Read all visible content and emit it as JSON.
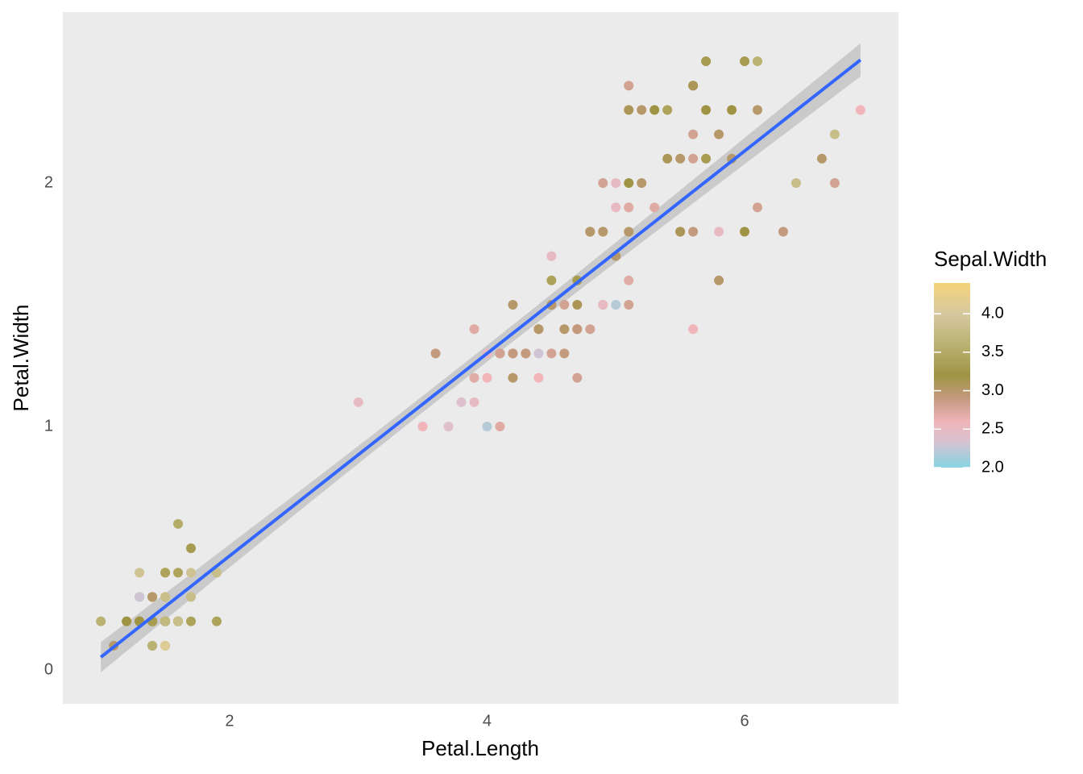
{
  "chart_data": {
    "type": "scatter",
    "x_label": "Petal.Length",
    "y_label": "Petal.Width",
    "xlim": [
      0.705,
      7.195
    ],
    "ylim": [
      -0.139,
      2.702
    ],
    "xticks": [
      2,
      4,
      6
    ],
    "yticks": [
      0,
      1,
      2
    ],
    "x_minor_grid": [
      1,
      3,
      5,
      7
    ],
    "y_minor_grid": [
      0.5,
      1.5,
      2.5
    ],
    "grid": true,
    "smooth": {
      "method": "lm",
      "se": true,
      "color": "#3366ff",
      "band_color": "#999999"
    },
    "color_scale": {
      "name": "Sepal.Width",
      "limits": [
        2.0,
        4.4
      ],
      "ticks": [
        {
          "value": 2.0,
          "label": "2.0"
        },
        {
          "value": 2.5,
          "label": "2.5"
        },
        {
          "value": 3.0,
          "label": "3.0"
        },
        {
          "value": 3.5,
          "label": "3.5"
        },
        {
          "value": 4.0,
          "label": "4.0"
        }
      ],
      "stops": [
        {
          "value": 2.0,
          "color": "#88d4e2"
        },
        {
          "value": 2.35,
          "color": "#d9c2d0"
        },
        {
          "value": 2.6,
          "color": "#f0b4b9"
        },
        {
          "value": 2.9,
          "color": "#c39a7e"
        },
        {
          "value": 3.2,
          "color": "#9f9444"
        },
        {
          "value": 3.6,
          "color": "#bab272"
        },
        {
          "value": 4.0,
          "color": "#d6c9a0"
        },
        {
          "value": 4.4,
          "color": "#f5d37a"
        }
      ]
    },
    "x": [
      1.4,
      1.4,
      1.3,
      1.5,
      1.4,
      1.7,
      1.4,
      1.5,
      1.4,
      1.5,
      1.5,
      1.6,
      1.4,
      1.1,
      1.2,
      1.5,
      1.3,
      1.4,
      1.7,
      1.5,
      1.7,
      1.5,
      1.0,
      1.7,
      1.9,
      1.6,
      1.6,
      1.5,
      1.4,
      1.6,
      1.6,
      1.5,
      1.5,
      1.4,
      1.5,
      1.2,
      1.3,
      1.4,
      1.3,
      1.5,
      1.3,
      1.3,
      1.3,
      1.6,
      1.9,
      1.4,
      1.6,
      1.4,
      1.5,
      1.4,
      4.7,
      4.5,
      4.9,
      4.0,
      4.6,
      4.5,
      4.7,
      3.3,
      4.6,
      3.9,
      3.5,
      4.2,
      4.0,
      4.7,
      3.6,
      4.4,
      4.5,
      4.1,
      4.5,
      3.9,
      4.8,
      4.0,
      4.9,
      4.7,
      4.3,
      4.4,
      4.8,
      5.0,
      4.5,
      3.5,
      3.8,
      3.7,
      3.9,
      5.1,
      4.5,
      4.5,
      4.7,
      4.4,
      4.1,
      4.0,
      4.4,
      4.6,
      4.0,
      3.3,
      4.2,
      4.2,
      4.2,
      4.3,
      3.0,
      4.1,
      6.0,
      5.1,
      5.9,
      5.6,
      5.8,
      6.6,
      4.5,
      6.3,
      5.8,
      6.1,
      5.1,
      5.3,
      5.5,
      5.0,
      5.1,
      5.3,
      5.5,
      6.7,
      6.9,
      5.0,
      5.7,
      4.9,
      6.7,
      4.9,
      5.7,
      6.0,
      4.8,
      4.9,
      5.6,
      5.8,
      6.1,
      6.4,
      5.6,
      5.1,
      5.6,
      6.1,
      5.6,
      5.5,
      4.8,
      5.4,
      5.6,
      5.1,
      5.1,
      5.9,
      5.7,
      5.2,
      5.0,
      5.2,
      5.4,
      5.1
    ],
    "values": [
      0.2,
      0.2,
      0.2,
      0.2,
      0.2,
      0.4,
      0.3,
      0.2,
      0.2,
      0.1,
      0.2,
      0.2,
      0.1,
      0.1,
      0.2,
      0.4,
      0.4,
      0.3,
      0.3,
      0.3,
      0.2,
      0.4,
      0.2,
      0.5,
      0.2,
      0.2,
      0.4,
      0.2,
      0.2,
      0.2,
      0.2,
      0.4,
      0.1,
      0.2,
      0.2,
      0.2,
      0.2,
      0.1,
      0.2,
      0.2,
      0.3,
      0.3,
      0.2,
      0.6,
      0.4,
      0.3,
      0.2,
      0.2,
      0.2,
      0.2,
      1.4,
      1.5,
      1.5,
      1.3,
      1.5,
      1.3,
      1.6,
      1.0,
      1.3,
      1.4,
      1.0,
      1.5,
      1.0,
      1.4,
      1.3,
      1.4,
      1.5,
      1.0,
      1.5,
      1.1,
      1.8,
      1.3,
      1.5,
      1.2,
      1.3,
      1.4,
      1.4,
      1.7,
      1.5,
      1.0,
      1.1,
      1.0,
      1.2,
      1.6,
      1.5,
      1.6,
      1.5,
      1.3,
      1.3,
      1.3,
      1.2,
      1.4,
      1.2,
      1.0,
      1.3,
      1.2,
      1.3,
      1.3,
      1.1,
      1.3,
      2.5,
      1.9,
      2.1,
      1.8,
      2.2,
      2.1,
      1.7,
      1.8,
      1.8,
      2.5,
      2.0,
      1.9,
      2.1,
      2.0,
      2.4,
      2.3,
      1.8,
      2.2,
      2.3,
      1.5,
      2.3,
      2.0,
      2.0,
      1.8,
      2.1,
      1.8,
      1.8,
      1.8,
      2.1,
      1.6,
      1.9,
      2.0,
      2.2,
      1.5,
      1.4,
      2.3,
      2.4,
      1.8,
      1.8,
      2.1,
      2.4,
      2.3,
      1.9,
      2.3,
      2.5,
      2.3,
      1.9,
      2.0,
      2.3,
      1.8
    ],
    "color_values": [
      3.5,
      3.0,
      3.2,
      3.1,
      3.6,
      3.9,
      3.4,
      3.4,
      2.9,
      3.1,
      3.7,
      3.4,
      3.0,
      3.0,
      4.0,
      4.4,
      3.9,
      3.5,
      3.8,
      3.8,
      3.4,
      3.7,
      3.6,
      3.3,
      3.4,
      3.0,
      3.4,
      3.5,
      3.4,
      3.2,
      3.1,
      3.4,
      4.1,
      4.2,
      3.1,
      3.2,
      3.5,
      3.6,
      3.0,
      3.4,
      3.5,
      2.3,
      3.2,
      3.5,
      3.8,
      3.0,
      3.8,
      3.2,
      3.7,
      3.3,
      3.2,
      3.2,
      3.1,
      2.3,
      2.8,
      2.8,
      3.3,
      2.4,
      2.9,
      2.7,
      2.0,
      3.0,
      2.2,
      2.9,
      2.9,
      3.1,
      3.0,
      2.7,
      2.2,
      2.5,
      3.2,
      2.8,
      2.5,
      2.8,
      2.9,
      3.0,
      2.8,
      3.0,
      2.9,
      2.6,
      2.4,
      2.4,
      2.7,
      2.7,
      3.0,
      3.4,
      3.1,
      2.3,
      3.0,
      2.5,
      2.6,
      3.0,
      2.6,
      2.3,
      2.7,
      3.0,
      2.9,
      2.9,
      2.5,
      2.8,
      3.3,
      2.7,
      3.0,
      2.9,
      3.0,
      3.0,
      2.5,
      2.9,
      2.5,
      3.6,
      3.2,
      2.7,
      3.0,
      2.5,
      2.8,
      3.2,
      3.0,
      3.8,
      2.6,
      2.2,
      3.2,
      2.8,
      2.8,
      2.7,
      3.3,
      3.2,
      2.8,
      3.0,
      2.8,
      3.0,
      2.8,
      3.8,
      2.8,
      2.8,
      2.6,
      3.0,
      3.4,
      3.1,
      3.0,
      3.1,
      3.1,
      3.1,
      2.7,
      3.2,
      3.3,
      3.0,
      2.5,
      3.0,
      3.4,
      3.0
    ]
  }
}
